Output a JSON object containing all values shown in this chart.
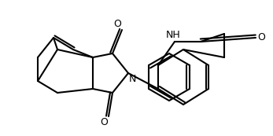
{
  "background_color": "#ffffff",
  "line_color": "#000000",
  "line_width": 1.5,
  "font_size": 9,
  "figsize": [
    3.47,
    1.73
  ],
  "dpi": 100,
  "atoms": {
    "N_label": "N",
    "NH_label": "NH",
    "O1_label": "O",
    "O2_label": "O",
    "O3_label": "O"
  }
}
